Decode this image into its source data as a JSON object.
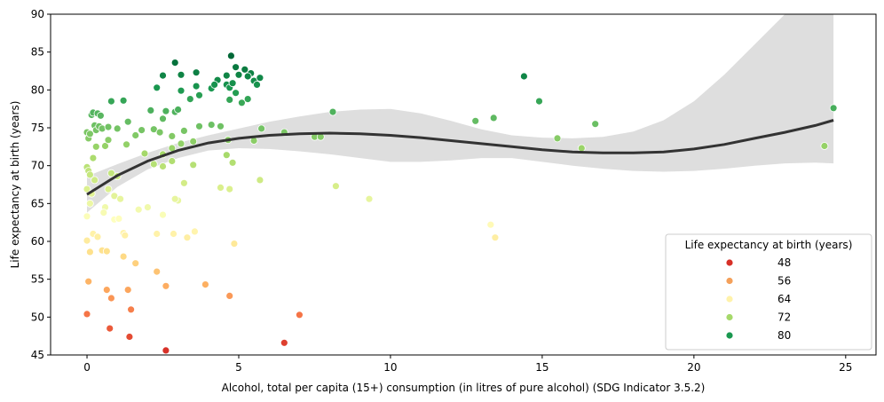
{
  "chart_data": {
    "type": "scatter",
    "title": "",
    "xlabel": "Alcohol, total per capita (15+) consumption (in litres of pure alcohol) (SDG Indicator 3.5.2)",
    "ylabel": "Life expectancy at birth (years)",
    "xlim": [
      -1.2,
      26.0
    ],
    "ylim": [
      45,
      90
    ],
    "xticks": [
      0,
      5,
      10,
      15,
      20,
      25
    ],
    "yticks": [
      45,
      50,
      55,
      60,
      65,
      70,
      75,
      80,
      85,
      90
    ],
    "grid": false,
    "legend": {
      "title": "Life expectancy at birth (years)",
      "placement": "lower-right",
      "entries": [
        {
          "label": "48",
          "color": "#d73027"
        },
        {
          "label": "56",
          "color": "#f4a05a"
        },
        {
          "label": "64",
          "color": "#fff2aa"
        },
        {
          "label": "72",
          "color": "#a6d96a"
        },
        {
          "label": "80",
          "color": "#1a9850"
        }
      ]
    },
    "color_scale": {
      "min": 45.5,
      "max": 84.5,
      "stops": [
        "#d73027",
        "#f46d43",
        "#fdae61",
        "#fee08b",
        "#ffffbf",
        "#d9ef8b",
        "#a6d96a",
        "#66bd63",
        "#1a9850",
        "#006837"
      ]
    },
    "trend_line": {
      "x": [
        0,
        1,
        2,
        3,
        4,
        5,
        6,
        7,
        8,
        9,
        10,
        11,
        12,
        13,
        14,
        15,
        16,
        17,
        18,
        19,
        20,
        21,
        22,
        23,
        24,
        24.6
      ],
      "y": [
        66.2,
        68.7,
        70.6,
        72.0,
        73.0,
        73.6,
        74.0,
        74.2,
        74.3,
        74.2,
        74.0,
        73.7,
        73.3,
        72.9,
        72.5,
        72.1,
        71.8,
        71.7,
        71.7,
        71.8,
        72.2,
        72.8,
        73.6,
        74.4,
        75.3,
        76.0
      ]
    },
    "confidence_band": {
      "x": [
        0,
        1,
        2,
        3,
        4,
        5,
        6,
        7,
        8,
        9,
        10,
        11,
        12,
        13,
        14,
        15,
        16,
        17,
        18,
        19,
        20,
        21,
        22,
        23,
        24,
        24.6
      ],
      "lower": [
        63.8,
        67.2,
        69.5,
        71.0,
        72.0,
        72.3,
        72.2,
        71.9,
        71.5,
        71.0,
        70.5,
        70.5,
        70.7,
        71.0,
        71.0,
        70.5,
        70.0,
        69.6,
        69.3,
        69.2,
        69.3,
        69.6,
        70.0,
        70.3,
        70.4,
        70.3
      ],
      "upper": [
        68.6,
        70.2,
        71.7,
        73.0,
        74.0,
        74.9,
        75.8,
        76.5,
        77.1,
        77.4,
        77.5,
        76.9,
        75.9,
        74.8,
        74.0,
        73.7,
        73.6,
        73.8,
        74.5,
        76.0,
        78.5,
        82.0,
        86.0,
        90.0,
        90.0,
        90.0
      ]
    },
    "points": [
      {
        "x": 0.0,
        "y": 74.4
      },
      {
        "x": 0.05,
        "y": 73.6
      },
      {
        "x": 0.1,
        "y": 74.2
      },
      {
        "x": 0.15,
        "y": 76.7
      },
      {
        "x": 0.2,
        "y": 77.0
      },
      {
        "x": 0.25,
        "y": 75.3
      },
      {
        "x": 0.3,
        "y": 74.7
      },
      {
        "x": 0.35,
        "y": 76.9
      },
      {
        "x": 0.4,
        "y": 75.2
      },
      {
        "x": 0.45,
        "y": 76.6
      },
      {
        "x": 0.5,
        "y": 74.9
      },
      {
        "x": 0.3,
        "y": 72.5
      },
      {
        "x": 0.6,
        "y": 72.6
      },
      {
        "x": 0.2,
        "y": 71.0
      },
      {
        "x": 0.0,
        "y": 69.8
      },
      {
        "x": 0.05,
        "y": 69.3
      },
      {
        "x": 0.1,
        "y": 68.8
      },
      {
        "x": 0.25,
        "y": 68.1
      },
      {
        "x": 0.0,
        "y": 66.9
      },
      {
        "x": 0.15,
        "y": 66.3
      },
      {
        "x": 0.1,
        "y": 65.0
      },
      {
        "x": 0.0,
        "y": 63.3
      },
      {
        "x": 0.2,
        "y": 61.0
      },
      {
        "x": 0.0,
        "y": 60.1
      },
      {
        "x": 0.1,
        "y": 58.6
      },
      {
        "x": 0.05,
        "y": 54.7
      },
      {
        "x": 0.0,
        "y": 50.4
      },
      {
        "x": 0.8,
        "y": 78.5
      },
      {
        "x": 1.2,
        "y": 78.6
      },
      {
        "x": 0.7,
        "y": 75.1
      },
      {
        "x": 1.0,
        "y": 74.9
      },
      {
        "x": 1.35,
        "y": 75.8
      },
      {
        "x": 0.7,
        "y": 73.4
      },
      {
        "x": 1.3,
        "y": 72.8
      },
      {
        "x": 1.6,
        "y": 74.0
      },
      {
        "x": 1.8,
        "y": 74.7
      },
      {
        "x": 1.9,
        "y": 71.6
      },
      {
        "x": 0.8,
        "y": 69.0
      },
      {
        "x": 1.0,
        "y": 68.6
      },
      {
        "x": 0.7,
        "y": 66.9
      },
      {
        "x": 0.9,
        "y": 66.0
      },
      {
        "x": 1.1,
        "y": 65.6
      },
      {
        "x": 0.6,
        "y": 64.5
      },
      {
        "x": 0.55,
        "y": 63.8
      },
      {
        "x": 0.9,
        "y": 62.9
      },
      {
        "x": 1.05,
        "y": 63.0
      },
      {
        "x": 1.7,
        "y": 64.2
      },
      {
        "x": 2.0,
        "y": 64.5
      },
      {
        "x": 0.35,
        "y": 60.6
      },
      {
        "x": 1.2,
        "y": 61.1
      },
      {
        "x": 1.25,
        "y": 60.8
      },
      {
        "x": 0.5,
        "y": 58.8
      },
      {
        "x": 0.65,
        "y": 58.7
      },
      {
        "x": 1.2,
        "y": 58.0
      },
      {
        "x": 1.6,
        "y": 57.1
      },
      {
        "x": 0.65,
        "y": 53.6
      },
      {
        "x": 0.8,
        "y": 52.5
      },
      {
        "x": 1.35,
        "y": 53.6
      },
      {
        "x": 1.45,
        "y": 51.0
      },
      {
        "x": 0.75,
        "y": 48.5
      },
      {
        "x": 1.4,
        "y": 47.4
      },
      {
        "x": 2.6,
        "y": 45.6
      },
      {
        "x": 2.3,
        "y": 80.3
      },
      {
        "x": 2.5,
        "y": 81.9
      },
      {
        "x": 2.9,
        "y": 83.6
      },
      {
        "x": 3.1,
        "y": 82.0
      },
      {
        "x": 3.6,
        "y": 82.3
      },
      {
        "x": 3.6,
        "y": 80.5
      },
      {
        "x": 3.1,
        "y": 79.9
      },
      {
        "x": 3.7,
        "y": 79.3
      },
      {
        "x": 3.4,
        "y": 78.8
      },
      {
        "x": 2.1,
        "y": 77.3
      },
      {
        "x": 2.6,
        "y": 77.2
      },
      {
        "x": 2.9,
        "y": 77.1
      },
      {
        "x": 3.0,
        "y": 77.4
      },
      {
        "x": 2.5,
        "y": 76.2
      },
      {
        "x": 2.2,
        "y": 74.8
      },
      {
        "x": 2.4,
        "y": 74.4
      },
      {
        "x": 2.8,
        "y": 73.9
      },
      {
        "x": 3.2,
        "y": 74.6
      },
      {
        "x": 3.7,
        "y": 75.2
      },
      {
        "x": 4.1,
        "y": 75.4
      },
      {
        "x": 4.4,
        "y": 75.2
      },
      {
        "x": 3.5,
        "y": 73.2
      },
      {
        "x": 2.5,
        "y": 71.5
      },
      {
        "x": 2.8,
        "y": 72.3
      },
      {
        "x": 3.1,
        "y": 72.9
      },
      {
        "x": 2.2,
        "y": 70.2
      },
      {
        "x": 2.5,
        "y": 69.9
      },
      {
        "x": 2.8,
        "y": 70.6
      },
      {
        "x": 3.5,
        "y": 70.1
      },
      {
        "x": 3.2,
        "y": 67.7
      },
      {
        "x": 3.0,
        "y": 65.4
      },
      {
        "x": 2.9,
        "y": 65.6
      },
      {
        "x": 2.5,
        "y": 63.5
      },
      {
        "x": 2.3,
        "y": 61.0
      },
      {
        "x": 2.85,
        "y": 61.0
      },
      {
        "x": 3.3,
        "y": 60.5
      },
      {
        "x": 3.55,
        "y": 61.3
      },
      {
        "x": 2.3,
        "y": 56.0
      },
      {
        "x": 2.6,
        "y": 54.1
      },
      {
        "x": 3.9,
        "y": 54.3
      },
      {
        "x": 4.1,
        "y": 80.2
      },
      {
        "x": 4.3,
        "y": 81.3
      },
      {
        "x": 4.6,
        "y": 81.9
      },
      {
        "x": 4.75,
        "y": 84.5
      },
      {
        "x": 4.9,
        "y": 83.0
      },
      {
        "x": 5.2,
        "y": 82.7
      },
      {
        "x": 5.0,
        "y": 82.0
      },
      {
        "x": 5.4,
        "y": 82.2
      },
      {
        "x": 5.3,
        "y": 81.8
      },
      {
        "x": 5.5,
        "y": 81.2
      },
      {
        "x": 5.7,
        "y": 81.6
      },
      {
        "x": 4.2,
        "y": 80.7
      },
      {
        "x": 4.6,
        "y": 80.7
      },
      {
        "x": 4.7,
        "y": 80.3
      },
      {
        "x": 4.8,
        "y": 80.9
      },
      {
        "x": 4.9,
        "y": 79.6
      },
      {
        "x": 4.7,
        "y": 78.7
      },
      {
        "x": 5.1,
        "y": 78.3
      },
      {
        "x": 5.6,
        "y": 80.7
      },
      {
        "x": 5.3,
        "y": 78.8
      },
      {
        "x": 5.75,
        "y": 74.9
      },
      {
        "x": 6.5,
        "y": 74.4
      },
      {
        "x": 5.5,
        "y": 73.3
      },
      {
        "x": 4.6,
        "y": 71.4
      },
      {
        "x": 4.8,
        "y": 70.4
      },
      {
        "x": 4.65,
        "y": 73.4
      },
      {
        "x": 4.4,
        "y": 67.1
      },
      {
        "x": 4.7,
        "y": 66.9
      },
      {
        "x": 5.7,
        "y": 68.1
      },
      {
        "x": 4.85,
        "y": 59.7
      },
      {
        "x": 4.7,
        "y": 52.8
      },
      {
        "x": 6.5,
        "y": 46.6
      },
      {
        "x": 7.0,
        "y": 50.3
      },
      {
        "x": 7.5,
        "y": 73.8
      },
      {
        "x": 7.7,
        "y": 73.8
      },
      {
        "x": 8.1,
        "y": 77.1
      },
      {
        "x": 8.2,
        "y": 67.3
      },
      {
        "x": 9.3,
        "y": 65.6
      },
      {
        "x": 12.8,
        "y": 75.9
      },
      {
        "x": 13.4,
        "y": 76.3
      },
      {
        "x": 13.3,
        "y": 62.2
      },
      {
        "x": 13.45,
        "y": 60.5
      },
      {
        "x": 14.4,
        "y": 81.8
      },
      {
        "x": 14.9,
        "y": 78.5
      },
      {
        "x": 15.5,
        "y": 73.6
      },
      {
        "x": 16.3,
        "y": 72.3
      },
      {
        "x": 16.75,
        "y": 75.5
      },
      {
        "x": 24.3,
        "y": 72.6
      },
      {
        "x": 24.6,
        "y": 77.6
      }
    ]
  }
}
